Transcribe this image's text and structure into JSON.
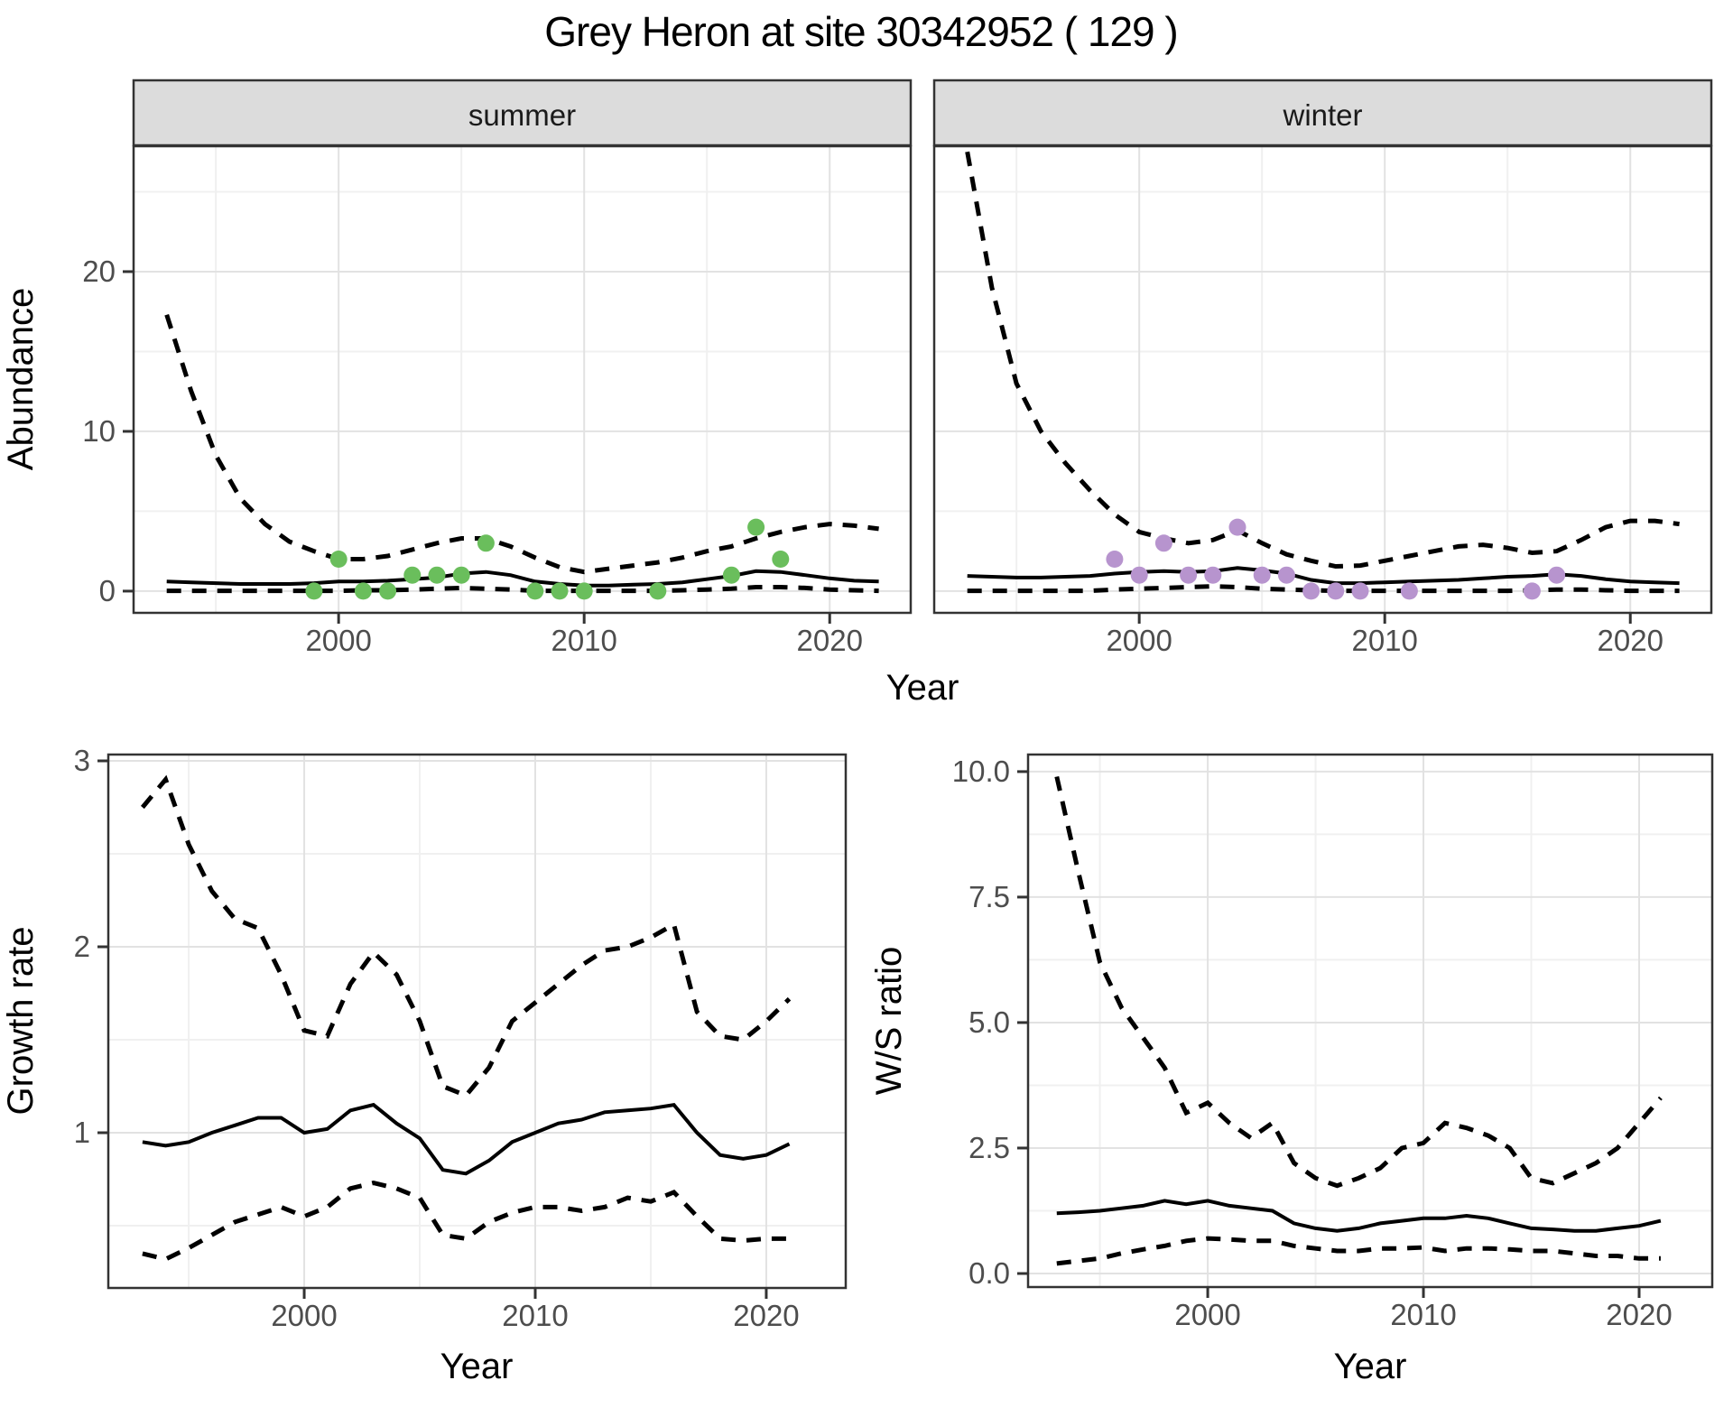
{
  "title": "Grey Heron at site 30342952 ( 129 )",
  "colors": {
    "summer_point": "#6abe5c",
    "winter_point": "#b794ce",
    "line": "#000000",
    "panel_border": "#333333",
    "grid_major": "#e2e2e2",
    "grid_minor": "#f0f0f0",
    "strip_bg": "#dcdcdc",
    "tick_text": "#4d4d4d",
    "axis_title_text": "#000000",
    "background": "#ffffff"
  },
  "chart_data": [
    {
      "id": "abundance",
      "type": "line",
      "title": "Grey Heron at site 30342952 ( 129 )",
      "xlabel": "Year",
      "ylabel": "Abundance",
      "legend": "none",
      "grid": true,
      "x": [
        1993,
        1994,
        1995,
        1996,
        1997,
        1998,
        1999,
        2000,
        2001,
        2002,
        2003,
        2004,
        2005,
        2006,
        2007,
        2008,
        2009,
        2010,
        2011,
        2012,
        2013,
        2014,
        2015,
        2016,
        2017,
        2018,
        2019,
        2020,
        2021,
        2022
      ],
      "xticks": {
        "values": [
          2000,
          2010,
          2020
        ],
        "labels": [
          "2000",
          "2010",
          "2020"
        ]
      },
      "yticks": {
        "values": [
          0,
          10,
          20
        ],
        "labels": [
          "0",
          "10",
          "20"
        ]
      },
      "xlim": [
        1991.65,
        2023.3
      ],
      "ylim": [
        -1.36,
        27.85
      ],
      "facets": [
        {
          "label": "summer",
          "series": [
            {
              "name": "upper-95ci",
              "style": "dashed",
              "values": [
                17.3,
                12.5,
                8.5,
                5.8,
                4.2,
                3.1,
                2.5,
                2.0,
                2.0,
                2.2,
                2.6,
                3.0,
                3.3,
                3.3,
                2.8,
                2.1,
                1.5,
                1.2,
                1.4,
                1.6,
                1.8,
                2.1,
                2.5,
                2.8,
                3.3,
                3.7,
                4.0,
                4.2,
                4.1,
                3.9
              ]
            },
            {
              "name": "median",
              "style": "solid",
              "values": [
                0.6,
                0.55,
                0.5,
                0.45,
                0.45,
                0.45,
                0.5,
                0.6,
                0.6,
                0.65,
                0.75,
                0.85,
                1.1,
                1.2,
                1.0,
                0.6,
                0.45,
                0.35,
                0.35,
                0.4,
                0.45,
                0.55,
                0.75,
                0.95,
                1.25,
                1.2,
                1.0,
                0.8,
                0.65,
                0.6
              ]
            },
            {
              "name": "lower-95ci",
              "style": "dashed",
              "values": [
                0.02,
                0.02,
                0.02,
                0.02,
                0.02,
                0.02,
                0.02,
                0.02,
                0.05,
                0.05,
                0.1,
                0.15,
                0.2,
                0.15,
                0.1,
                0.02,
                0.02,
                0.02,
                0.02,
                0.02,
                0.02,
                0.05,
                0.1,
                0.15,
                0.25,
                0.25,
                0.2,
                0.1,
                0.05,
                0.02
              ]
            }
          ],
          "points": {
            "name": "observed-abundance",
            "color_key": "summer_point",
            "x": [
              1999,
              2000,
              2001,
              2002,
              2003,
              2004,
              2005,
              2006,
              2008,
              2009,
              2010,
              2013,
              2016,
              2017,
              2018
            ],
            "y": [
              0,
              2,
              0,
              0,
              1,
              1,
              1,
              3,
              0,
              0,
              0,
              0,
              1,
              4,
              2
            ]
          }
        },
        {
          "label": "winter",
          "series": [
            {
              "name": "upper-95ci",
              "style": "dashed",
              "values": [
                27.5,
                19.0,
                13.0,
                10.0,
                8.0,
                6.3,
                4.8,
                3.7,
                3.3,
                3.0,
                3.2,
                3.8,
                3.0,
                2.3,
                1.9,
                1.55,
                1.6,
                1.9,
                2.2,
                2.5,
                2.8,
                2.9,
                2.7,
                2.4,
                2.5,
                3.2,
                4.0,
                4.4,
                4.4,
                4.2
              ]
            },
            {
              "name": "median",
              "style": "solid",
              "values": [
                0.95,
                0.9,
                0.85,
                0.85,
                0.9,
                0.95,
                1.1,
                1.2,
                1.25,
                1.2,
                1.25,
                1.45,
                1.3,
                1.1,
                0.7,
                0.5,
                0.5,
                0.55,
                0.6,
                0.65,
                0.7,
                0.8,
                0.9,
                0.95,
                1.05,
                0.95,
                0.75,
                0.6,
                0.55,
                0.5
              ]
            },
            {
              "name": "lower-95ci",
              "style": "dashed",
              "values": [
                0.02,
                0.02,
                0.02,
                0.02,
                0.02,
                0.02,
                0.1,
                0.15,
                0.2,
                0.25,
                0.3,
                0.25,
                0.15,
                0.1,
                0.05,
                0.02,
                0.02,
                0.02,
                0.02,
                0.02,
                0.02,
                0.02,
                0.02,
                0.05,
                0.1,
                0.1,
                0.05,
                0.02,
                0.02,
                0.02
              ]
            }
          ],
          "points": {
            "name": "observed-abundance",
            "color_key": "winter_point",
            "x": [
              1999,
              2000,
              2001,
              2002,
              2003,
              2004,
              2005,
              2006,
              2007,
              2008,
              2009,
              2011,
              2016,
              2017
            ],
            "y": [
              2,
              1,
              3,
              1,
              1,
              4,
              1,
              1,
              0,
              0,
              0,
              0,
              0,
              1
            ]
          }
        }
      ]
    },
    {
      "id": "growth-rate",
      "type": "line",
      "title": "",
      "xlabel": "Year",
      "ylabel": "Growth rate",
      "legend": "none",
      "grid": true,
      "x": [
        1993,
        1994,
        1995,
        1996,
        1997,
        1998,
        1999,
        2000,
        2001,
        2002,
        2003,
        2004,
        2005,
        2006,
        2007,
        2008,
        2009,
        2010,
        2011,
        2012,
        2013,
        2014,
        2015,
        2016,
        2017,
        2018,
        2019,
        2020,
        2021
      ],
      "xticks": {
        "values": [
          2000,
          2010,
          2020
        ],
        "labels": [
          "2000",
          "2010",
          "2020"
        ]
      },
      "yticks": {
        "values": [
          1,
          2,
          3
        ],
        "labels": [
          "1",
          "2",
          "3"
        ]
      },
      "xlim": [
        1991.52,
        2023.44
      ],
      "ylim": [
        0.165,
        3.034
      ],
      "facets": [
        {
          "label": null,
          "series": [
            {
              "name": "upper-95ci",
              "style": "dashed",
              "values": [
                2.75,
                2.9,
                2.55,
                2.3,
                2.15,
                2.1,
                1.85,
                1.55,
                1.52,
                1.8,
                1.97,
                1.85,
                1.6,
                1.25,
                1.2,
                1.35,
                1.6,
                1.7,
                1.8,
                1.9,
                1.98,
                2.0,
                2.05,
                2.12,
                1.65,
                1.52,
                1.5,
                1.6,
                1.72
              ]
            },
            {
              "name": "median",
              "style": "solid",
              "values": [
                0.95,
                0.93,
                0.95,
                1.0,
                1.04,
                1.08,
                1.08,
                1.0,
                1.02,
                1.12,
                1.15,
                1.05,
                0.97,
                0.8,
                0.78,
                0.85,
                0.95,
                1.0,
                1.05,
                1.07,
                1.11,
                1.12,
                1.13,
                1.15,
                1.0,
                0.88,
                0.86,
                0.88,
                0.94
              ]
            },
            {
              "name": "lower-95ci",
              "style": "dashed",
              "values": [
                0.35,
                0.32,
                0.38,
                0.45,
                0.52,
                0.56,
                0.6,
                0.55,
                0.6,
                0.7,
                0.73,
                0.7,
                0.65,
                0.45,
                0.43,
                0.52,
                0.57,
                0.6,
                0.6,
                0.58,
                0.6,
                0.65,
                0.63,
                0.68,
                0.55,
                0.43,
                0.42,
                0.43,
                0.43
              ]
            }
          ],
          "points": null
        }
      ]
    },
    {
      "id": "ws-ratio",
      "type": "line",
      "title": "",
      "xlabel": "Year",
      "ylabel": "W/S ratio",
      "legend": "none",
      "grid": true,
      "x": [
        1993,
        1994,
        1995,
        1996,
        1997,
        1998,
        1999,
        2000,
        2001,
        2002,
        2003,
        2004,
        2005,
        2006,
        2007,
        2008,
        2009,
        2010,
        2011,
        2012,
        2013,
        2014,
        2015,
        2016,
        2017,
        2018,
        2019,
        2020,
        2021
      ],
      "xticks": {
        "values": [
          2000,
          2010,
          2020
        ],
        "labels": [
          "2000",
          "2010",
          "2020"
        ]
      },
      "yticks": {
        "values": [
          0,
          2.5,
          5,
          7.5,
          10
        ],
        "labels": [
          "0.0",
          "2.5",
          "5.0",
          "7.5",
          "10.0"
        ]
      },
      "xlim": [
        1991.67,
        2023.39
      ],
      "ylim": [
        -0.27,
        10.34
      ],
      "facets": [
        {
          "label": null,
          "series": [
            {
              "name": "upper-95ci",
              "style": "dashed",
              "values": [
                9.9,
                8.0,
                6.2,
                5.3,
                4.7,
                4.1,
                3.2,
                3.4,
                3.0,
                2.7,
                3.0,
                2.2,
                1.9,
                1.75,
                1.9,
                2.1,
                2.5,
                2.6,
                3.0,
                2.9,
                2.75,
                2.5,
                1.9,
                1.8,
                2.0,
                2.2,
                2.5,
                3.0,
                3.5
              ]
            },
            {
              "name": "median",
              "style": "solid",
              "values": [
                1.2,
                1.22,
                1.25,
                1.3,
                1.35,
                1.45,
                1.38,
                1.45,
                1.35,
                1.3,
                1.25,
                1.0,
                0.9,
                0.85,
                0.9,
                1.0,
                1.05,
                1.1,
                1.1,
                1.15,
                1.1,
                1.0,
                0.9,
                0.88,
                0.85,
                0.85,
                0.9,
                0.95,
                1.05
              ]
            },
            {
              "name": "lower-95ci",
              "style": "dashed",
              "values": [
                0.2,
                0.25,
                0.3,
                0.4,
                0.48,
                0.55,
                0.65,
                0.7,
                0.68,
                0.65,
                0.65,
                0.55,
                0.5,
                0.45,
                0.45,
                0.5,
                0.5,
                0.52,
                0.45,
                0.5,
                0.5,
                0.48,
                0.45,
                0.45,
                0.4,
                0.35,
                0.35,
                0.3,
                0.3
              ]
            }
          ],
          "points": null
        }
      ]
    }
  ]
}
